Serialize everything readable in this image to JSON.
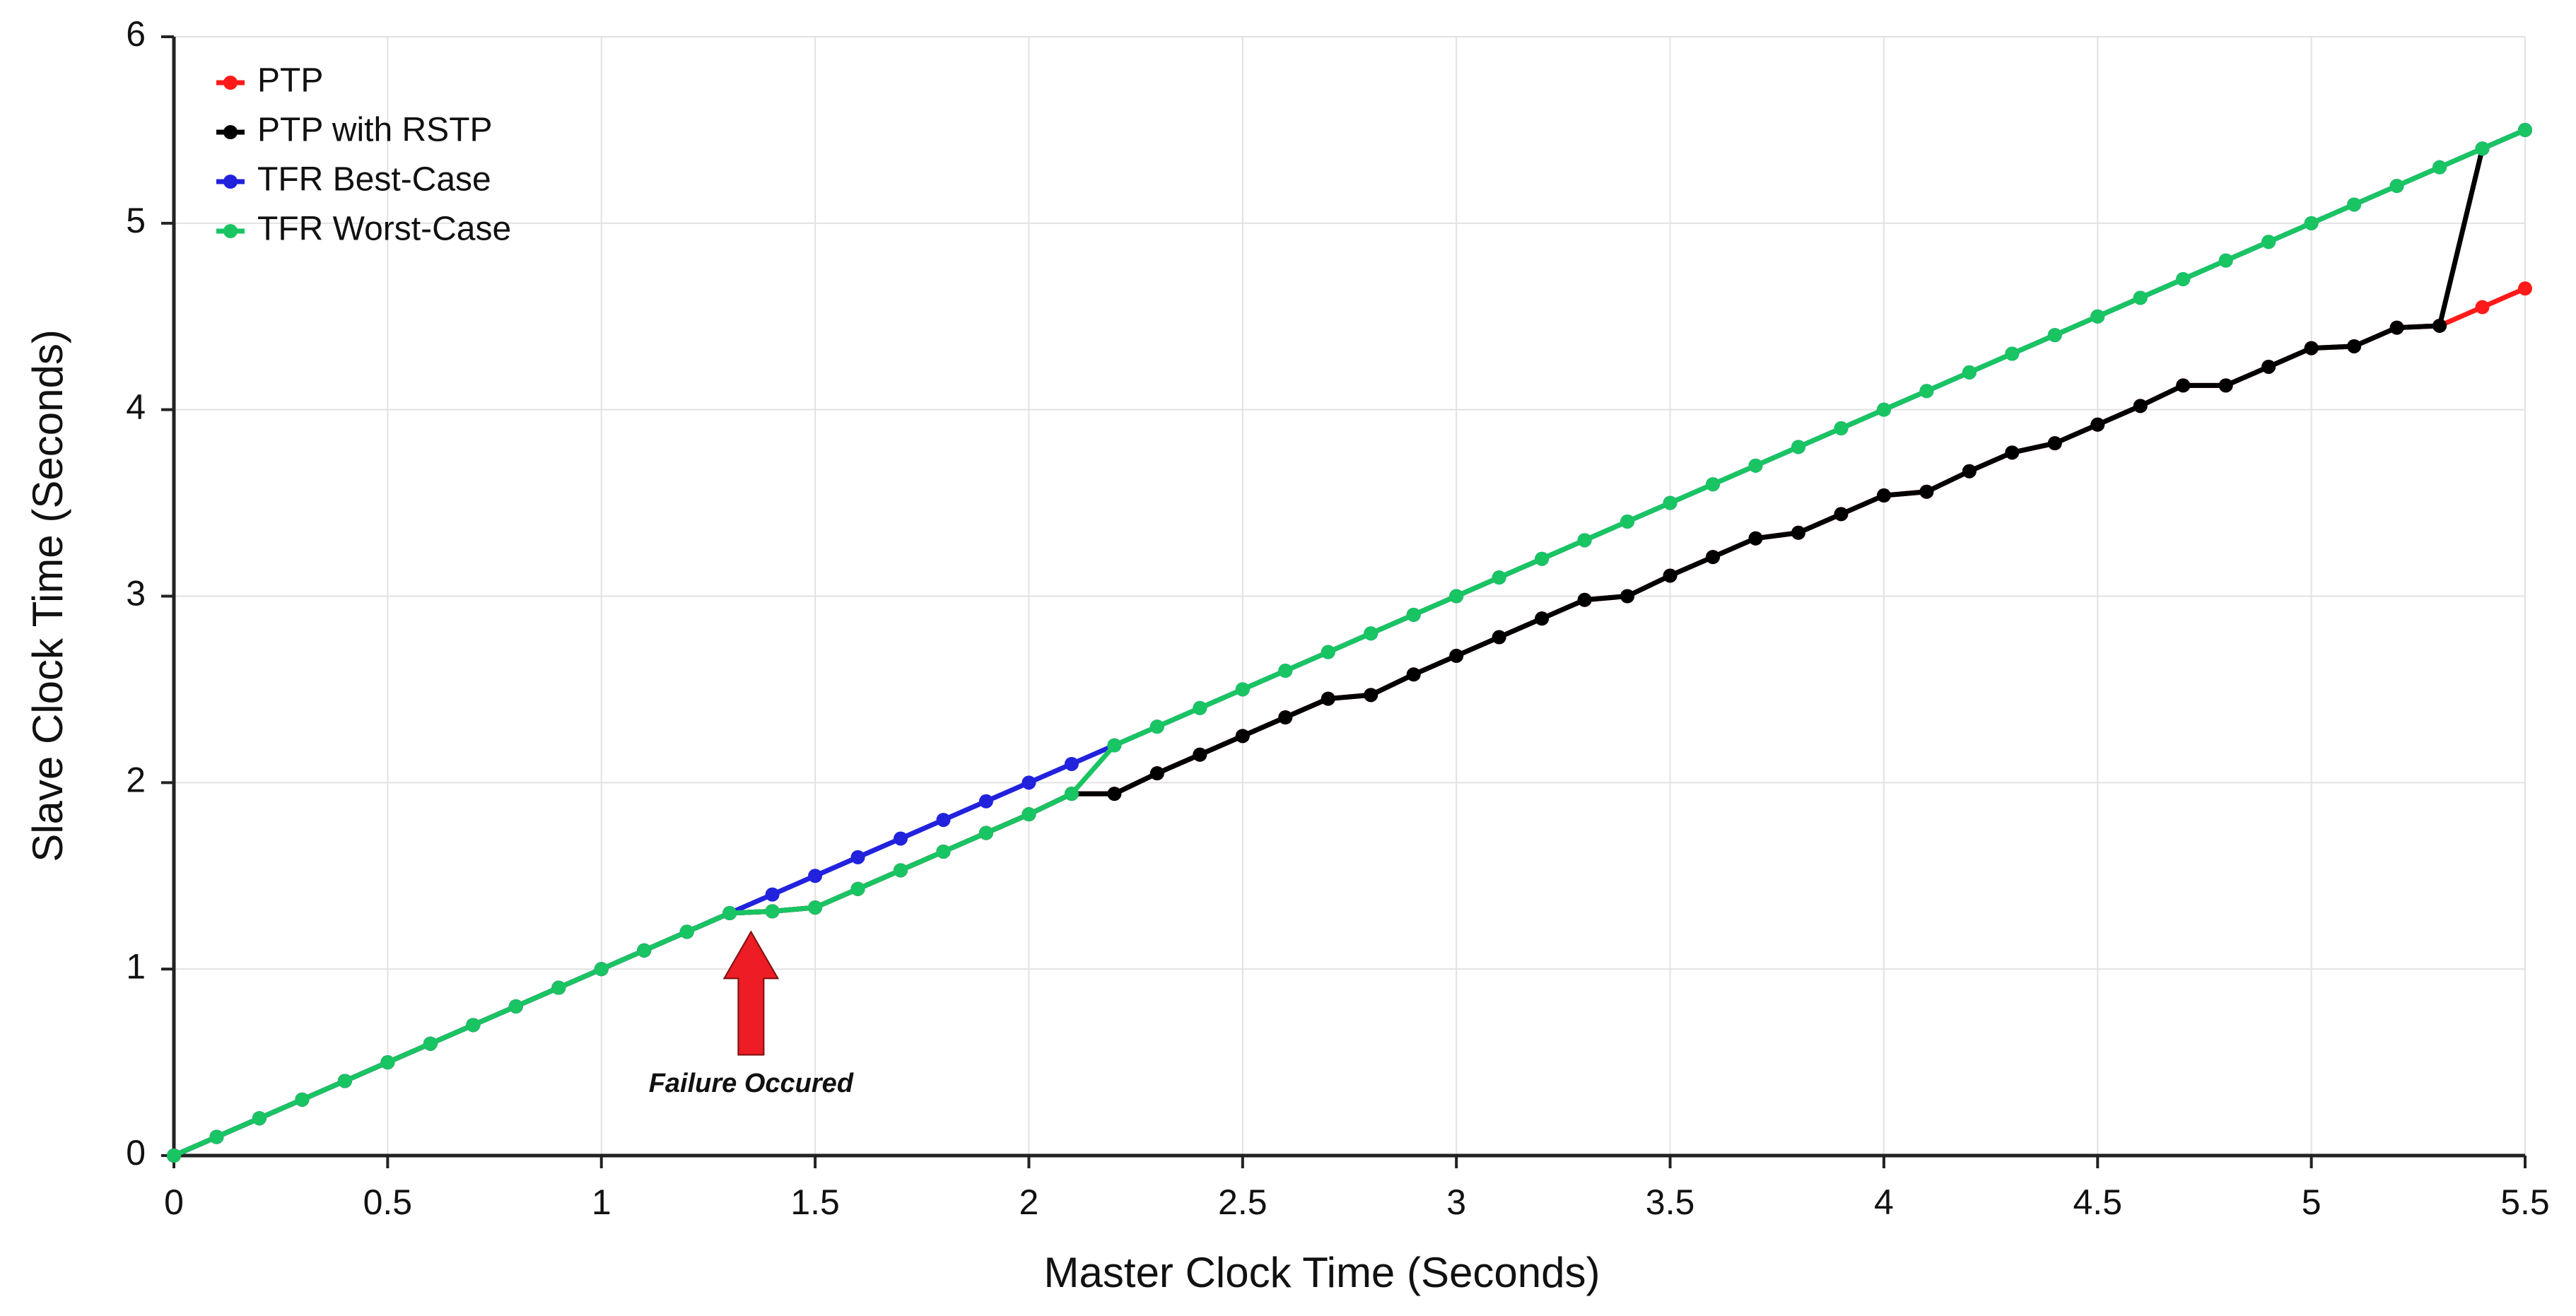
{
  "chart_data": {
    "type": "line",
    "xlabel": "Master Clock Time (Seconds)",
    "ylabel": "Slave Clock Time (Seconds)",
    "annotation": "Failure Occured",
    "x": [
      0,
      0.1,
      0.2,
      0.3,
      0.4,
      0.5,
      0.6,
      0.7,
      0.8,
      0.9,
      1,
      1.1,
      1.2,
      1.3,
      1.4,
      1.5,
      1.6,
      1.7,
      1.8,
      1.9,
      2,
      2.1,
      2.2,
      2.3,
      2.4,
      2.5,
      2.6,
      2.7,
      2.8,
      2.9,
      3,
      3.1,
      3.2,
      3.3,
      3.4,
      3.5,
      3.6,
      3.7,
      3.8,
      3.9,
      4,
      4.1,
      4.2,
      4.3,
      4.4,
      4.5,
      4.6,
      4.7,
      4.8,
      4.9,
      5,
      5.1,
      5.2,
      5.3,
      5.4,
      5.5
    ],
    "series": [
      {
        "name": "PTP",
        "color": "#ff1a1a",
        "values": [
          0,
          0.1,
          0.2,
          0.3,
          0.4,
          0.5,
          0.6,
          0.7,
          0.8,
          0.9,
          1,
          1.1,
          1.2,
          1.3,
          1.31,
          1.33,
          1.43,
          1.53,
          1.63,
          1.73,
          1.83,
          1.94,
          1.94,
          2.05,
          2.15,
          2.25,
          2.35,
          2.45,
          2.47,
          2.58,
          2.68,
          2.78,
          2.88,
          2.98,
          3.0,
          3.11,
          3.21,
          3.31,
          3.34,
          3.44,
          3.54,
          3.56,
          3.67,
          3.77,
          3.82,
          3.92,
          4.02,
          4.13,
          4.13,
          4.23,
          4.33,
          4.34,
          4.44,
          4.45,
          4.55,
          4.65
        ]
      },
      {
        "name": "PTP with RSTP",
        "color": "#000000",
        "values": [
          0,
          0.1,
          0.2,
          0.3,
          0.4,
          0.5,
          0.6,
          0.7,
          0.8,
          0.9,
          1,
          1.1,
          1.2,
          1.3,
          1.31,
          1.33,
          1.43,
          1.53,
          1.63,
          1.73,
          1.83,
          1.94,
          1.94,
          2.05,
          2.15,
          2.25,
          2.35,
          2.45,
          2.47,
          2.58,
          2.68,
          2.78,
          2.88,
          2.98,
          3.0,
          3.11,
          3.21,
          3.31,
          3.34,
          3.44,
          3.54,
          3.56,
          3.67,
          3.77,
          3.82,
          3.92,
          4.02,
          4.13,
          4.13,
          4.23,
          4.33,
          4.34,
          4.44,
          4.45,
          5.4,
          5.5
        ]
      },
      {
        "name": "TFR Best-Case",
        "color": "#2222dd",
        "values": [
          0,
          0.1,
          0.2,
          0.3,
          0.4,
          0.5,
          0.6,
          0.7,
          0.8,
          0.9,
          1,
          1.1,
          1.2,
          1.3,
          1.4,
          1.5,
          1.6,
          1.7,
          1.8,
          1.9,
          2,
          2.1,
          2.2,
          2.3,
          2.4,
          2.5,
          2.6,
          2.7,
          2.8,
          2.9,
          3,
          3.1,
          3.2,
          3.3,
          3.4,
          3.5,
          3.6,
          3.7,
          3.8,
          3.9,
          4,
          4.1,
          4.2,
          4.3,
          4.4,
          4.5,
          4.6,
          4.7,
          4.8,
          4.9,
          5,
          5.1,
          5.2,
          5.3,
          5.4,
          5.5
        ]
      },
      {
        "name": "TFR Worst-Case",
        "color": "#19c462",
        "values": [
          0,
          0.1,
          0.2,
          0.3,
          0.4,
          0.5,
          0.6,
          0.7,
          0.8,
          0.9,
          1,
          1.1,
          1.2,
          1.3,
          1.31,
          1.33,
          1.43,
          1.53,
          1.63,
          1.73,
          1.83,
          1.94,
          2.2,
          2.3,
          2.4,
          2.5,
          2.6,
          2.7,
          2.8,
          2.9,
          3,
          3.1,
          3.2,
          3.3,
          3.4,
          3.5,
          3.6,
          3.7,
          3.8,
          3.9,
          4,
          4.1,
          4.2,
          4.3,
          4.4,
          4.5,
          4.6,
          4.7,
          4.8,
          4.9,
          5,
          5.1,
          5.2,
          5.3,
          5.4,
          5.5
        ]
      }
    ],
    "xlim": [
      0,
      5.5
    ],
    "xticks": [
      0,
      0.5,
      1,
      1.5,
      2,
      2.5,
      3,
      3.5,
      4,
      4.5,
      5,
      5.5
    ],
    "ylim": [
      0,
      6
    ],
    "yticks": [
      0,
      1,
      2,
      3,
      4,
      5,
      6
    ],
    "grid": true,
    "legend": "upper left"
  }
}
